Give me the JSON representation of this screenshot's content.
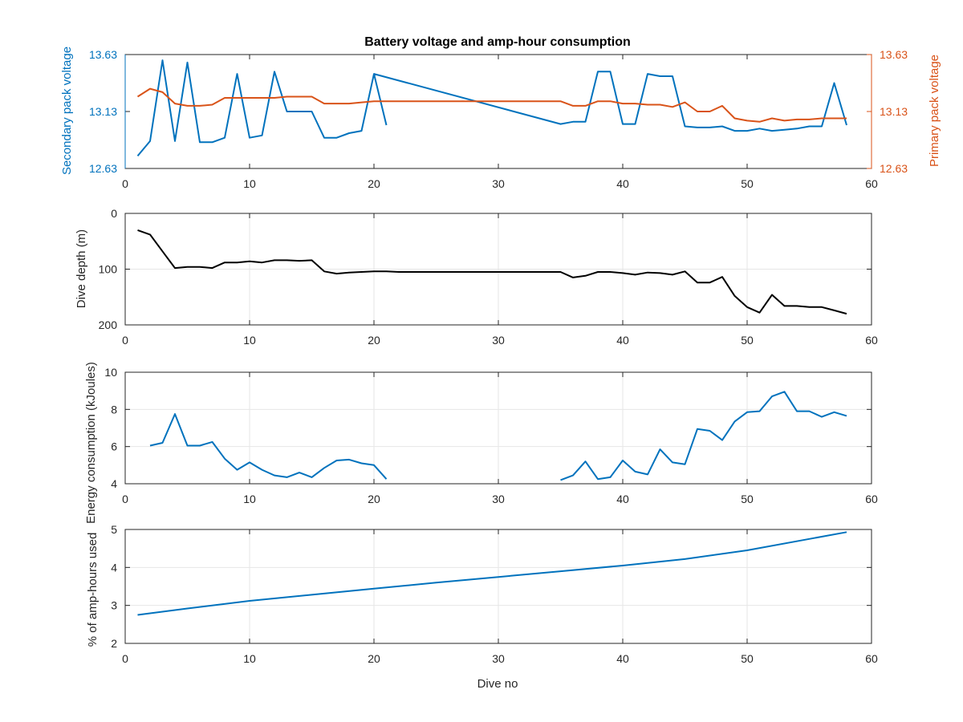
{
  "figure": {
    "title": "Battery voltage and amp-hour consumption",
    "xlabel": "Dive no"
  },
  "colors": {
    "blue": "#0072BD",
    "orange": "#D95319",
    "black": "#000000",
    "grid": "#e6e6e6",
    "axis": "#262626"
  },
  "chart_data": [
    {
      "type": "line",
      "title": "Battery voltage and amp-hour consumption",
      "xlabel": "",
      "ylabel_left": "Secondary pack voltage",
      "ylabel_right": "Primary pack voltage",
      "xlim": [
        0,
        60
      ],
      "ylim": [
        12.63,
        13.63
      ],
      "xticks": [
        0,
        10,
        20,
        30,
        40,
        50,
        60
      ],
      "yticks": [
        12.63,
        13.13,
        13.63
      ],
      "ytick_labels": [
        "12.63",
        "13.13",
        "13.63"
      ],
      "grid": false,
      "series": [
        {
          "axis": "left",
          "color": "blue",
          "x": [
            1,
            2,
            3,
            4,
            5,
            6,
            7,
            8,
            9,
            10,
            11,
            12,
            13,
            14,
            15,
            16,
            17,
            18,
            19,
            20,
            21,
            null,
            20,
            35,
            36,
            37,
            38,
            39,
            40,
            41,
            42,
            43,
            44,
            45,
            46,
            47,
            48,
            49,
            50,
            51,
            52,
            53,
            54,
            55,
            56,
            57,
            58
          ],
          "y": [
            12.74,
            12.87,
            13.58,
            12.87,
            13.56,
            12.86,
            12.86,
            12.9,
            13.46,
            12.9,
            12.92,
            13.48,
            13.13,
            13.13,
            13.13,
            12.9,
            12.9,
            12.94,
            12.96,
            13.46,
            13.01,
            null,
            13.46,
            13.02,
            13.04,
            13.04,
            13.48,
            13.48,
            13.02,
            13.02,
            13.46,
            13.44,
            13.44,
            13.0,
            12.99,
            12.99,
            13.0,
            12.96,
            12.96,
            12.98,
            12.96,
            12.97,
            12.98,
            13.0,
            13.0,
            13.38,
            13.01
          ]
        },
        {
          "axis": "right",
          "color": "orange",
          "x": [
            1,
            2,
            3,
            4,
            5,
            6,
            7,
            8,
            9,
            10,
            11,
            12,
            13,
            14,
            15,
            16,
            17,
            18,
            19,
            20,
            35,
            36,
            37,
            38,
            39,
            40,
            41,
            42,
            43,
            44,
            45,
            46,
            47,
            48,
            49,
            50,
            51,
            52,
            53,
            54,
            55,
            56,
            57,
            58
          ],
          "y": [
            13.26,
            13.33,
            13.3,
            13.2,
            13.18,
            13.18,
            13.19,
            13.25,
            13.25,
            13.25,
            13.25,
            13.25,
            13.26,
            13.26,
            13.26,
            13.2,
            13.2,
            13.2,
            13.21,
            13.22,
            13.22,
            13.18,
            13.18,
            13.22,
            13.22,
            13.2,
            13.2,
            13.19,
            13.19,
            13.17,
            13.21,
            13.13,
            13.13,
            13.18,
            13.07,
            13.05,
            13.04,
            13.07,
            13.05,
            13.06,
            13.06,
            13.07,
            13.07,
            13.07
          ]
        }
      ]
    },
    {
      "type": "line",
      "title": "",
      "xlabel": "",
      "ylabel": "Dive depth (m)",
      "xlim": [
        0,
        60
      ],
      "ylim": [
        0,
        200
      ],
      "y_reversed": true,
      "xticks": [
        0,
        10,
        20,
        30,
        40,
        50,
        60
      ],
      "yticks": [
        0,
        100,
        200
      ],
      "grid": true,
      "series": [
        {
          "color": "black",
          "x": [
            1,
            2,
            3,
            4,
            5,
            6,
            7,
            8,
            9,
            10,
            11,
            12,
            13,
            14,
            15,
            16,
            17,
            18,
            19,
            20,
            21,
            22,
            35,
            36,
            37,
            38,
            39,
            40,
            41,
            42,
            43,
            44,
            45,
            46,
            47,
            48,
            49,
            50,
            51,
            52,
            53,
            54,
            55,
            56,
            57,
            58
          ],
          "y": [
            30,
            38,
            68,
            98,
            96,
            96,
            98,
            88,
            88,
            86,
            88,
            84,
            84,
            85,
            84,
            104,
            108,
            106,
            105,
            104,
            104,
            105,
            105,
            115,
            112,
            105,
            105,
            107,
            110,
            106,
            107,
            110,
            104,
            124,
            124,
            114,
            148,
            168,
            178,
            146,
            166,
            166,
            168,
            168,
            174,
            180
          ]
        }
      ]
    },
    {
      "type": "line",
      "title": "",
      "xlabel": "",
      "ylabel": "Energy consumption (kJoules)",
      "xlim": [
        0,
        60
      ],
      "ylim": [
        4,
        10
      ],
      "xticks": [
        0,
        10,
        20,
        30,
        40,
        50,
        60
      ],
      "yticks": [
        4,
        6,
        8,
        10
      ],
      "grid": true,
      "series": [
        {
          "color": "blue",
          "x": [
            2,
            3,
            4,
            5,
            6,
            7,
            8,
            9,
            10,
            11,
            12,
            13,
            14,
            15,
            16,
            17,
            18,
            19,
            20,
            21,
            null,
            35,
            36,
            37,
            38,
            39,
            40,
            41,
            42,
            43,
            44,
            45,
            46,
            47,
            48,
            49,
            50,
            51,
            52,
            53,
            54,
            55,
            56,
            57,
            58
          ],
          "y": [
            6.05,
            6.2,
            7.75,
            6.05,
            6.05,
            6.25,
            5.35,
            4.75,
            5.15,
            4.75,
            4.45,
            4.35,
            4.6,
            4.35,
            4.85,
            5.25,
            5.3,
            5.1,
            5.0,
            4.25,
            null,
            4.2,
            4.45,
            5.2,
            4.25,
            4.35,
            5.25,
            4.65,
            4.5,
            5.85,
            5.15,
            5.05,
            6.95,
            6.85,
            6.35,
            7.35,
            7.85,
            7.9,
            8.7,
            8.95,
            7.9,
            7.9,
            7.6,
            7.85,
            7.65
          ]
        }
      ]
    },
    {
      "type": "line",
      "title": "",
      "xlabel": "Dive no",
      "ylabel": "% of amp-hours used",
      "xlim": [
        0,
        60
      ],
      "ylim": [
        2,
        5
      ],
      "xticks": [
        0,
        10,
        20,
        30,
        40,
        50,
        60
      ],
      "yticks": [
        2,
        3,
        4,
        5
      ],
      "grid": true,
      "series": [
        {
          "color": "blue",
          "x": [
            1,
            5,
            10,
            15,
            20,
            25,
            30,
            35,
            40,
            45,
            50,
            55,
            58
          ],
          "y": [
            2.75,
            2.92,
            3.12,
            3.28,
            3.44,
            3.6,
            3.75,
            3.9,
            4.05,
            4.22,
            4.45,
            4.75,
            4.93
          ]
        }
      ]
    }
  ]
}
